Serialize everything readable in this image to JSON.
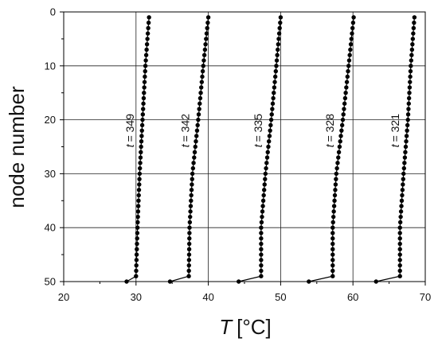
{
  "chart_data": {
    "type": "line",
    "title": "",
    "xlabel_symbol": "T",
    "xlabel_unit": "[°C]",
    "ylabel": "node number",
    "xlim": [
      20,
      70
    ],
    "ylim": [
      0,
      50
    ],
    "y_inverted": true,
    "x_ticks": [
      "20",
      "30",
      "40",
      "50",
      "60",
      "70"
    ],
    "y_ticks": [
      "0",
      "10",
      "20",
      "30",
      "40",
      "50"
    ],
    "grid": true,
    "series": [
      {
        "name": "t = 349",
        "label_prefix": "t",
        "label_value": "= 349",
        "surface": {
          "node": 50,
          "T": 28.7
        },
        "profile": [
          {
            "node": 1,
            "T": 31.8
          },
          {
            "node": 10,
            "T": 31.3
          },
          {
            "node": 20,
            "T": 30.9
          },
          {
            "node": 30,
            "T": 30.5
          },
          {
            "node": 40,
            "T": 30.2
          },
          {
            "node": 49,
            "T": 30.0
          }
        ]
      },
      {
        "name": "t = 342",
        "label_prefix": "t",
        "label_value": "= 342",
        "surface": {
          "node": 50,
          "T": 34.7
        },
        "profile": [
          {
            "node": 1,
            "T": 40.0
          },
          {
            "node": 10,
            "T": 39.3
          },
          {
            "node": 20,
            "T": 38.6
          },
          {
            "node": 30,
            "T": 37.8
          },
          {
            "node": 40,
            "T": 37.4
          },
          {
            "node": 49,
            "T": 37.3
          }
        ]
      },
      {
        "name": "t = 335",
        "label_prefix": "t",
        "label_value": "= 335",
        "surface": {
          "node": 50,
          "T": 44.2
        },
        "profile": [
          {
            "node": 1,
            "T": 50.0
          },
          {
            "node": 10,
            "T": 49.4
          },
          {
            "node": 20,
            "T": 48.7
          },
          {
            "node": 30,
            "T": 47.9
          },
          {
            "node": 40,
            "T": 47.3
          },
          {
            "node": 49,
            "T": 47.3
          }
        ]
      },
      {
        "name": "t = 328",
        "label_prefix": "t",
        "label_value": "= 328",
        "surface": {
          "node": 50,
          "T": 53.9
        },
        "profile": [
          {
            "node": 1,
            "T": 60.1
          },
          {
            "node": 10,
            "T": 59.4
          },
          {
            "node": 20,
            "T": 58.6
          },
          {
            "node": 30,
            "T": 57.7
          },
          {
            "node": 40,
            "T": 57.2
          },
          {
            "node": 49,
            "T": 57.2
          }
        ]
      },
      {
        "name": "t = 321",
        "label_prefix": "t",
        "label_value": "= 321",
        "surface": {
          "node": 50,
          "T": 63.2
        },
        "profile": [
          {
            "node": 1,
            "T": 68.5
          },
          {
            "node": 10,
            "T": 68.0
          },
          {
            "node": 20,
            "T": 67.6
          },
          {
            "node": 30,
            "T": 67.0
          },
          {
            "node": 40,
            "T": 66.5
          },
          {
            "node": 49,
            "T": 66.5
          }
        ]
      }
    ],
    "colors": {
      "marker": "#000000",
      "grid": "#222222",
      "axis": "#000000"
    }
  }
}
